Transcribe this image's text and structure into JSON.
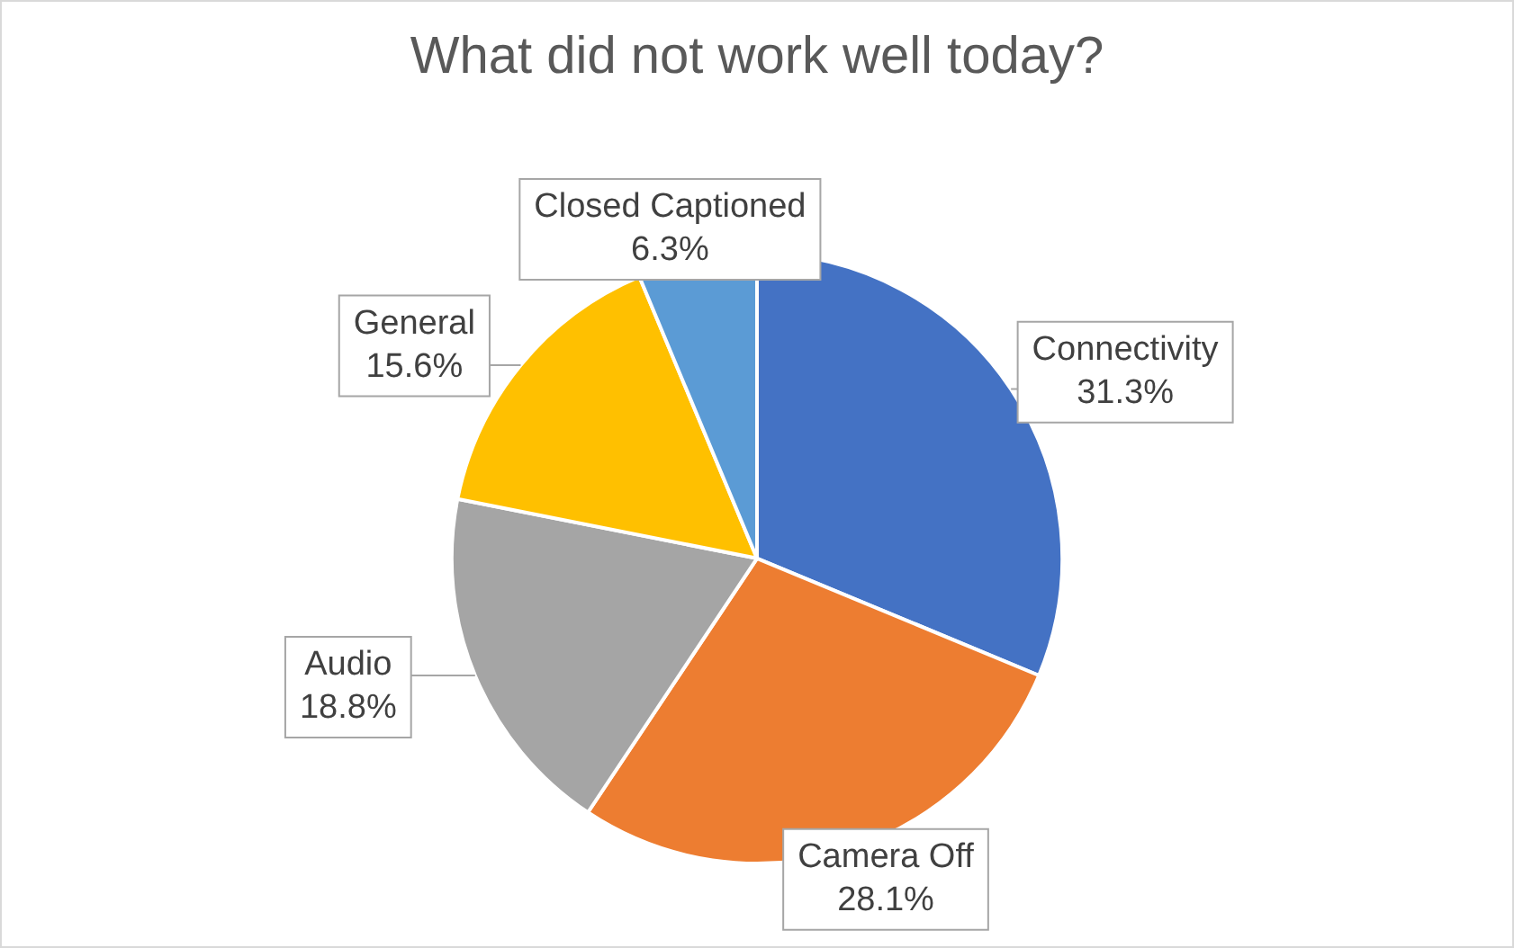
{
  "chart_data": {
    "type": "pie",
    "title": "What did not work well today?",
    "categories": [
      "Connectivity",
      "Camera Off",
      "Audio",
      "General",
      "Closed Captioned"
    ],
    "values": [
      31.3,
      28.1,
      18.8,
      15.6,
      6.3
    ],
    "value_labels": [
      "31.3%",
      "28.1%",
      "18.8%",
      "15.6%",
      "6.3%"
    ],
    "colors": [
      "#4472c4",
      "#ed7d31",
      "#a5a5a5",
      "#ffc000",
      "#5b9bd5"
    ],
    "legend": false
  }
}
